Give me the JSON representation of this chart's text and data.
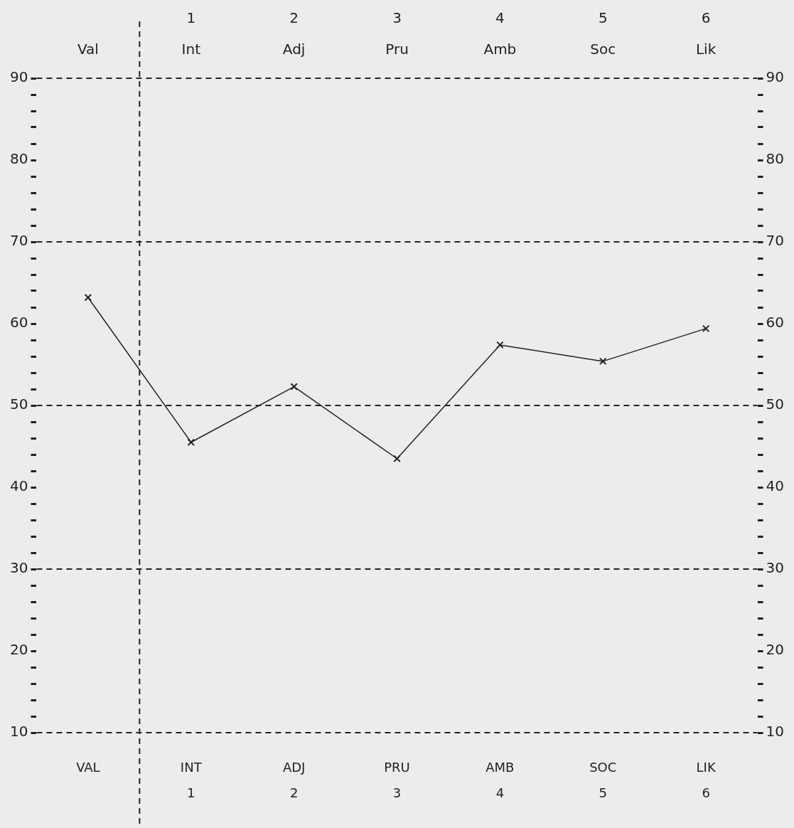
{
  "chart_data": {
    "type": "line",
    "categories": [
      "VAL",
      "INT\n1",
      "ADJ\n2",
      "PRU\n3",
      "AMB\n4",
      "SOC\n5",
      "LIK\n6"
    ],
    "series": [
      {
        "color": "#222222",
        "values": [
          63.2,
          45.5,
          52.3,
          43.5,
          57.4,
          55.4,
          59.4
        ]
      }
    ],
    "annotations": [
      "Val",
      "1\nInt",
      "2\nAdj",
      "3\nPru",
      "4\nAmb",
      "5\nSoc",
      "6\nLik"
    ],
    "ylim": [
      10,
      90
    ],
    "y2lim": [
      10,
      90
    ],
    "yticks": [
      10,
      {
        "value": 12,
        "label": null
      },
      {
        "value": 14,
        "label": null
      },
      {
        "value": 16,
        "label": null
      },
      {
        "value": 18,
        "label": null
      },
      20,
      {
        "value": 22,
        "label": null
      },
      {
        "value": 24,
        "label": null
      },
      {
        "value": 26,
        "label": null
      },
      {
        "value": 28,
        "label": null
      },
      30,
      {
        "value": 32,
        "label": null
      },
      {
        "value": 34,
        "label": null
      },
      {
        "value": 36,
        "label": null
      },
      {
        "value": 38,
        "label": null
      },
      40,
      {
        "value": 42,
        "label": null
      },
      {
        "value": 44,
        "label": null
      },
      {
        "value": 46,
        "label": null
      },
      {
        "value": 48,
        "label": null
      },
      50,
      {
        "value": 52,
        "label": null
      },
      {
        "value": 54,
        "label": null
      },
      {
        "value": 56,
        "label": null
      },
      {
        "value": 58,
        "label": null
      },
      60,
      {
        "value": 62,
        "label": null
      },
      {
        "value": 64,
        "label": null
      },
      {
        "value": 66,
        "label": null
      },
      {
        "value": 68,
        "label": null
      },
      70,
      {
        "value": 72,
        "label": null
      },
      {
        "value": 74,
        "label": null
      },
      {
        "value": 76,
        "label": null
      },
      {
        "value": 78,
        "label": null
      },
      80,
      {
        "value": 82,
        "label": null
      },
      {
        "value": 84,
        "label": null
      },
      {
        "value": 86,
        "label": null
      },
      {
        "value": 88,
        "label": null
      },
      90
    ],
    "y2ticks": [
      10,
      {
        "value": 12,
        "label": null
      },
      {
        "value": 14,
        "label": null
      },
      {
        "value": 16,
        "label": null
      },
      {
        "value": 18,
        "label": null
      },
      20,
      {
        "value": 22,
        "label": null
      },
      {
        "value": 24,
        "label": null
      },
      {
        "value": 26,
        "label": null
      },
      {
        "value": 28,
        "label": null
      },
      30,
      {
        "value": 32,
        "label": null
      },
      {
        "value": 34,
        "label": null
      },
      {
        "value": 36,
        "label": null
      },
      {
        "value": 38,
        "label": null
      },
      40,
      {
        "value": 42,
        "label": null
      },
      {
        "value": 44,
        "label": null
      },
      {
        "value": 46,
        "label": null
      },
      {
        "value": 48,
        "label": null
      },
      50,
      {
        "value": 52,
        "label": null
      },
      {
        "value": 54,
        "label": null
      },
      {
        "value": 56,
        "label": null
      },
      {
        "value": 58,
        "label": null
      },
      60,
      {
        "value": 62,
        "label": null
      },
      {
        "value": 64,
        "label": null
      },
      {
        "value": 66,
        "label": null
      },
      {
        "value": 68,
        "label": null
      },
      70,
      {
        "value": 72,
        "label": null
      },
      {
        "value": 74,
        "label": null
      },
      {
        "value": 76,
        "label": null
      },
      {
        "value": 78,
        "label": null
      },
      80,
      {
        "value": 82,
        "label": null
      },
      {
        "value": 84,
        "label": null
      },
      {
        "value": 86,
        "label": null
      },
      {
        "value": 88,
        "label": null
      },
      90
    ],
    "ref_lines": [
      {
        "axis": "y",
        "value": 70,
        "line_style": "dashed",
        "color": "#222222"
      },
      {
        "axis": "y",
        "value": 50,
        "line_style": "dashed",
        "color": "#222222"
      },
      {
        "axis": "y",
        "value": 30,
        "line_style": "dashed",
        "color": "#222222"
      }
    ],
    "grid": false,
    "legend": false,
    "marker": "cross",
    "line_style": "solid"
  }
}
